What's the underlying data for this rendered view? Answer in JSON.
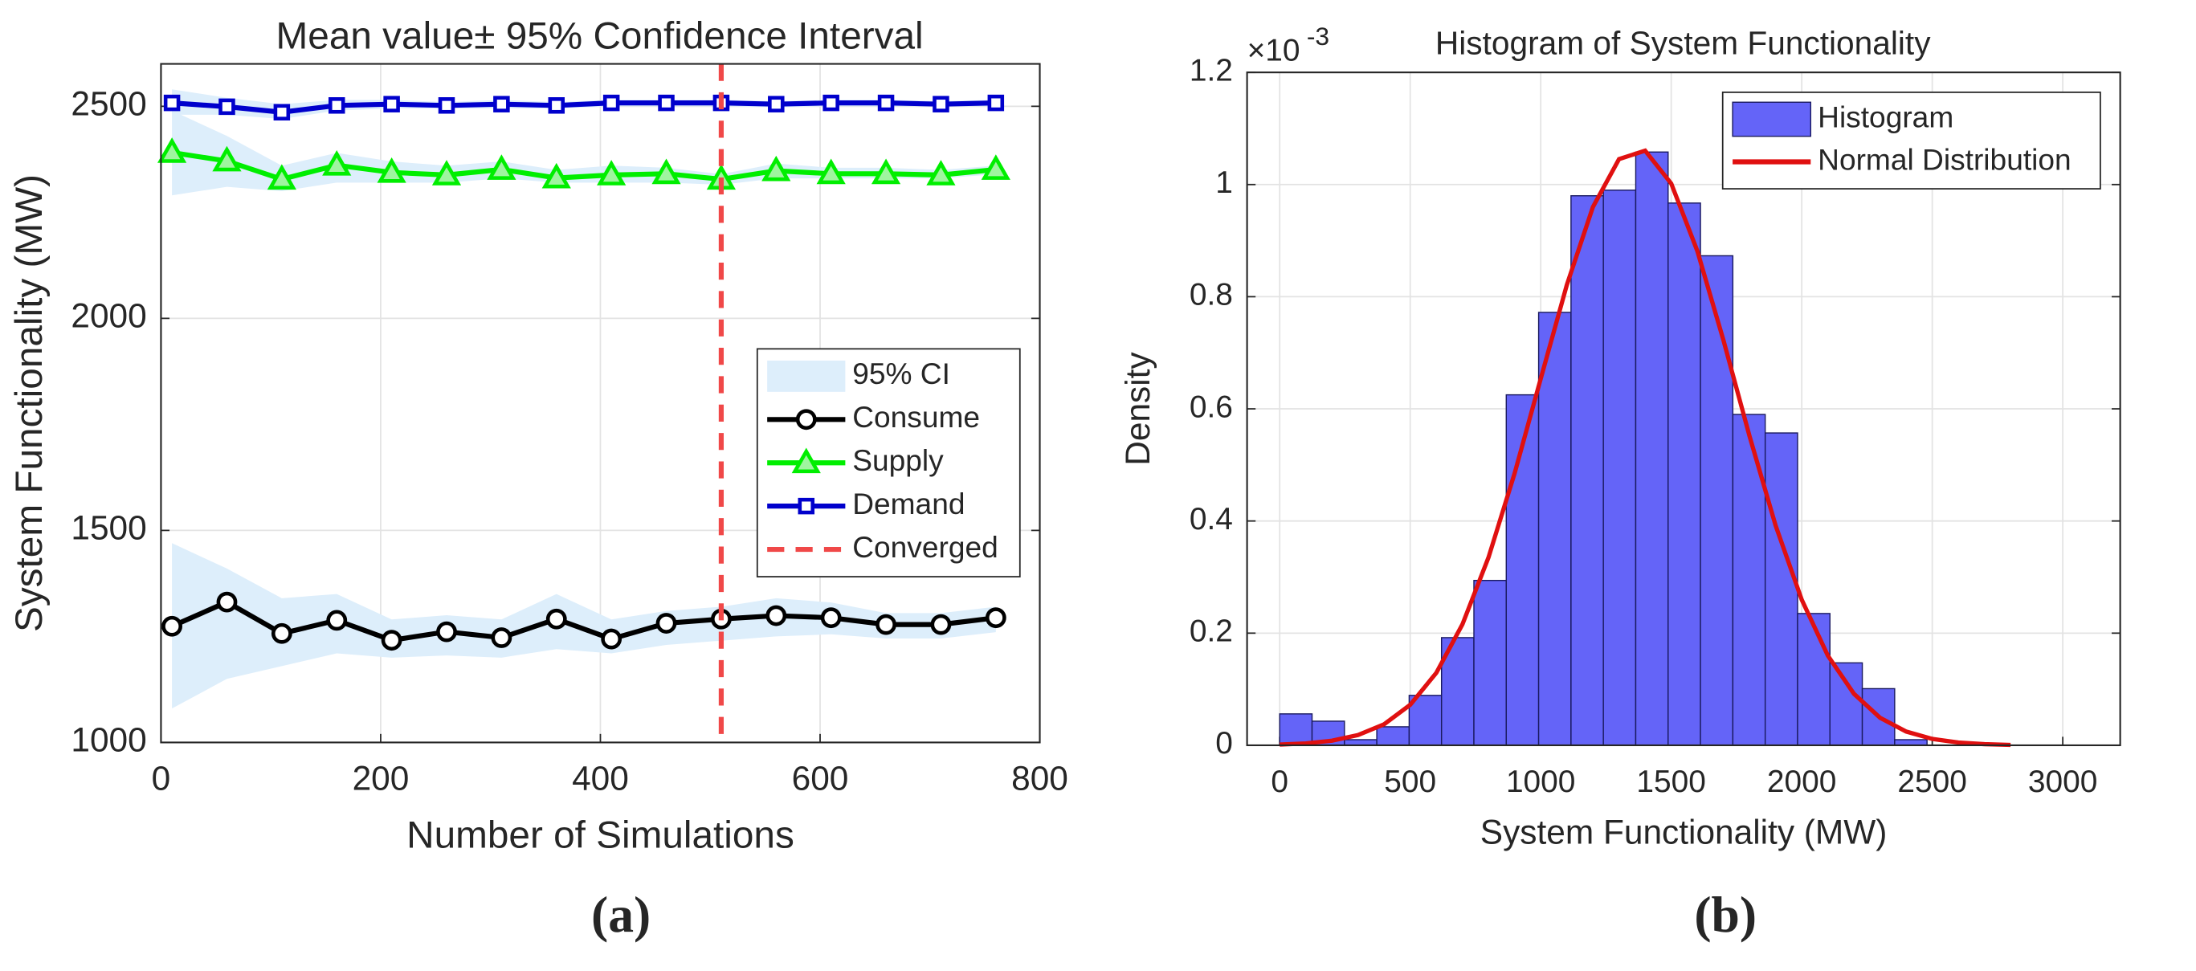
{
  "chart_data": [
    {
      "type": "line",
      "title": "Mean value± 95% Confidence Interval",
      "x_label": "Number of Simulations",
      "y_label": "System Functionality (MW)",
      "panel_label": "(a)",
      "x": [
        10,
        60,
        110,
        160,
        210,
        260,
        310,
        360,
        410,
        460,
        510,
        560,
        610,
        660,
        710,
        760
      ],
      "xlim": [
        0,
        800
      ],
      "xticks": [
        0,
        200,
        400,
        600,
        800
      ],
      "ylim": [
        1000,
        2600
      ],
      "yticks": [
        1000,
        1500,
        2000,
        2500
      ],
      "grid": true,
      "legend": "east",
      "ci_label": "95% CI",
      "ci_color": "#ddeefb",
      "series": [
        {
          "name": "Consume",
          "color": "#000000",
          "marker": "circle",
          "values": [
            1274,
            1331,
            1257,
            1288,
            1241,
            1261,
            1247,
            1291,
            1244,
            1281,
            1291,
            1299,
            1294,
            1278,
            1278,
            1294
          ],
          "ci_lower": [
            1080,
            1150,
            1180,
            1210,
            1200,
            1205,
            1200,
            1220,
            1210,
            1230,
            1240,
            1250,
            1255,
            1245,
            1245,
            1260
          ],
          "ci_upper": [
            1470,
            1410,
            1340,
            1350,
            1290,
            1300,
            1290,
            1350,
            1290,
            1310,
            1320,
            1340,
            1330,
            1305,
            1305,
            1320
          ]
        },
        {
          "name": "Supply",
          "color": "#00ee00",
          "marker": "triangle",
          "values": [
            2391,
            2371,
            2328,
            2361,
            2344,
            2338,
            2351,
            2331,
            2338,
            2341,
            2328,
            2348,
            2341,
            2341,
            2338,
            2351
          ],
          "ci_lower": [
            2290,
            2310,
            2300,
            2320,
            2320,
            2320,
            2330,
            2320,
            2320,
            2320,
            2315,
            2330,
            2330,
            2330,
            2330,
            2340
          ],
          "ci_upper": [
            2490,
            2430,
            2360,
            2390,
            2370,
            2360,
            2370,
            2350,
            2360,
            2355,
            2340,
            2365,
            2355,
            2355,
            2350,
            2360
          ]
        },
        {
          "name": "Demand",
          "color": "#0000cc",
          "marker": "square",
          "values": [
            2508,
            2499,
            2486,
            2502,
            2505,
            2502,
            2505,
            2502,
            2508,
            2508,
            2508,
            2505,
            2508,
            2508,
            2505,
            2508
          ],
          "ci_lower": [
            2480,
            2480,
            2470,
            2490,
            2495,
            2495,
            2495,
            2495,
            2500,
            2500,
            2500,
            2498,
            2500,
            2500,
            2500,
            2500
          ],
          "ci_upper": [
            2540,
            2520,
            2505,
            2515,
            2515,
            2510,
            2515,
            2510,
            2515,
            2515,
            2515,
            2512,
            2515,
            2515,
            2512,
            2515
          ]
        }
      ],
      "vline": {
        "name": "Converged",
        "x": 510,
        "color": "#f04848"
      }
    },
    {
      "type": "histogram",
      "title": "Histogram of System Functionality",
      "x_label": "System Functionality (MW)",
      "y_label": "Density",
      "y_multiplier": {
        "base": "×10",
        "exponent": "-3"
      },
      "panel_label": "(b)",
      "bar_name": "Histogram",
      "color": "#6464f8",
      "bins": [
        0,
        124,
        248,
        372,
        496,
        620,
        744,
        868,
        992,
        1116,
        1240,
        1364,
        1488,
        1612,
        1736,
        1860,
        1984,
        2108,
        2232,
        2356,
        2480
      ],
      "values": [
        0.056,
        0.043,
        0.01,
        0.033,
        0.089,
        0.192,
        0.294,
        0.625,
        0.772,
        0.98,
        0.99,
        1.058,
        0.967,
        0.873,
        0.59,
        0.557,
        0.235,
        0.147,
        0.101,
        0.01
      ],
      "curve": {
        "name": "Normal Distribution",
        "color": "#e01010",
        "x": [
          0,
          100,
          200,
          300,
          400,
          500,
          600,
          700,
          800,
          900,
          1000,
          1100,
          1200,
          1300,
          1400,
          1500,
          1600,
          1700,
          1800,
          1900,
          2000,
          2100,
          2200,
          2300,
          2400,
          2500,
          2600,
          2700,
          2800
        ],
        "values": [
          0.0013,
          0.0034,
          0.0082,
          0.0182,
          0.0375,
          0.0722,
          0.1292,
          0.2156,
          0.3351,
          0.4851,
          0.6537,
          0.8209,
          0.96,
          1.0454,
          1.0604,
          1.0018,
          0.8815,
          0.7223,
          0.5513,
          0.3917,
          0.2595,
          0.1599,
          0.0918,
          0.0491,
          0.0245,
          0.0114,
          0.0049,
          0.002,
          0.0007
        ]
      },
      "xlim": [
        -125,
        3220
      ],
      "xticks": [
        0,
        500,
        1000,
        1500,
        2000,
        2500,
        3000
      ],
      "ylim": [
        0,
        1.2
      ],
      "yticks": [
        0,
        0.2,
        0.4,
        0.6,
        0.8,
        1,
        1.2
      ],
      "grid": true,
      "legend": "northeast"
    }
  ]
}
